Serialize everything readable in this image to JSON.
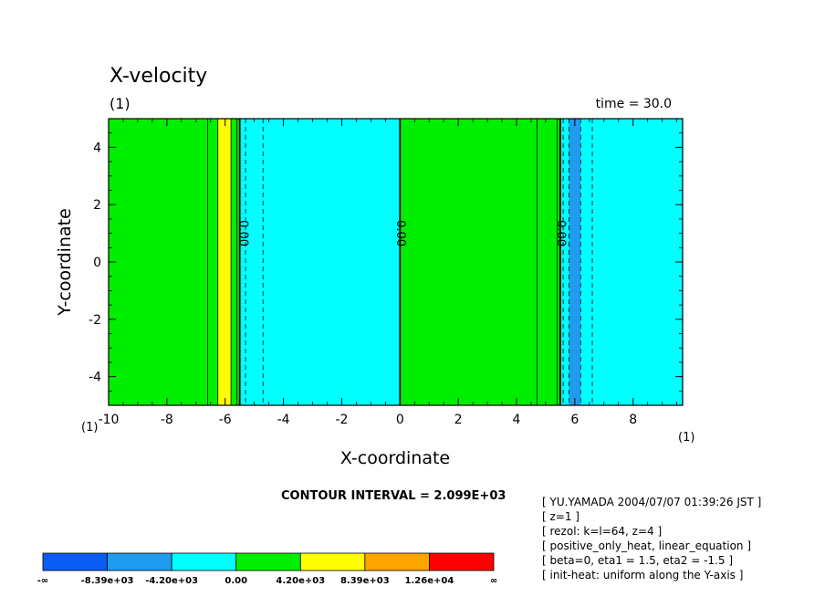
{
  "chart_data": {
    "type": "heatmap",
    "title": "X-velocity",
    "subtitle": "(1)",
    "time_label": "time = 30.0",
    "xlabel": "X-coordinate",
    "ylabel": "Y-coordinate",
    "xlim": [
      -10,
      9.7
    ],
    "ylim": [
      -5,
      5
    ],
    "x_ticks": [
      "-10",
      "-8",
      "-6",
      "-4",
      "-2",
      "0",
      "2",
      "4",
      "6",
      "8"
    ],
    "x_tick_values": [
      -10,
      -8,
      -6,
      -4,
      -2,
      0,
      2,
      4,
      6,
      8
    ],
    "y_ticks": [
      "-4",
      "-2",
      "0",
      "2",
      "4"
    ],
    "y_tick_values": [
      -4,
      -2,
      0,
      2,
      4
    ],
    "corner_label_left": "(1)",
    "corner_label_right": "(1)",
    "bands": [
      {
        "x0": -10,
        "x1": -6.6,
        "level": 3
      },
      {
        "x0": -6.6,
        "x1": -6.25,
        "level": 3
      },
      {
        "x0": -6.25,
        "x1": -5.8,
        "level": 4
      },
      {
        "x0": -5.8,
        "x1": -5.5,
        "level": 3
      },
      {
        "x0": -5.5,
        "x1": 0,
        "level": 2
      },
      {
        "x0": 0,
        "x1": 4.7,
        "level": 3
      },
      {
        "x0": 4.7,
        "x1": 5.5,
        "level": 3
      },
      {
        "x0": 5.5,
        "x1": 5.8,
        "level": 2
      },
      {
        "x0": 5.8,
        "x1": 6.2,
        "level": 1
      },
      {
        "x0": 6.2,
        "x1": 9.7,
        "level": 2
      }
    ],
    "contours_solid": [
      -6.6,
      -6.25,
      -5.8,
      -5.6,
      -5.5,
      0,
      4.7,
      5.4,
      5.5
    ],
    "contours_dashed": [
      -5.3,
      -4.7,
      5.6,
      5.8,
      6.2,
      6.6
    ],
    "contours_heavy": [
      -5.5,
      0,
      5.5
    ],
    "contour_labels": [
      {
        "x": -5.4,
        "y": 1.0,
        "text": "0.00"
      },
      {
        "x": 0,
        "y": 1.0,
        "text": "0.00"
      },
      {
        "x": 5.5,
        "y": 1.0,
        "text": "0.00"
      }
    ],
    "contour_interval": "CONTOUR INTERVAL = 2.099E+03",
    "colorbar": {
      "colors": [
        "#0a5cf5",
        "#1e9cf0",
        "#00ffff",
        "#00ee00",
        "#ffff00",
        "#ffa500",
        "#ff0000"
      ],
      "labels": [
        "-∞",
        "-8.39e+03",
        "-4.20e+03",
        "0.00",
        "4.20e+03",
        "8.39e+03",
        "1.26e+04",
        "∞"
      ]
    }
  },
  "info_lines": [
    "[ YU.YAMADA 2004/07/07 01:39:26 JST ]",
    "[ z=1 ]",
    "[ rezol: k=l=64, z=4 ]",
    "[ positive_only_heat, linear_equation ]",
    "[ beta=0, eta1 = 1.5, eta2 = -1.5 ]",
    "[ init-heat: uniform along the Y-axis ]"
  ]
}
